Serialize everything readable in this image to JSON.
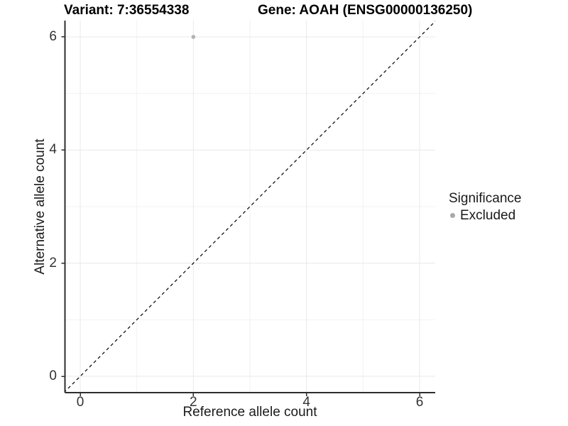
{
  "figure": {
    "title_left": "Variant: 7:36554338",
    "title_right": "Gene: AOAH (ENSG00000136250)"
  },
  "chart_data": {
    "type": "scatter",
    "title": "Variant: 7:36554338    Gene: AOAH (ENSG00000136250)",
    "xlabel": "Reference allele count",
    "ylabel": "Alternative allele count",
    "xlim": [
      -0.27,
      6.29
    ],
    "ylim": [
      -0.29,
      6.29
    ],
    "x_ticks": [
      0,
      2,
      4,
      6
    ],
    "y_ticks": [
      0,
      2,
      4,
      6
    ],
    "x_minor_gridlines": [
      1,
      3,
      5
    ],
    "y_minor_gridlines": [
      1,
      3,
      5
    ],
    "grid": "on",
    "identity_line": {
      "style": "dashed",
      "equation": "y = x",
      "from": -0.29,
      "to": 6.29
    },
    "series": [
      {
        "name": "Excluded",
        "color": "#b3b3b3",
        "points": [
          {
            "x": 2,
            "y": 6
          }
        ]
      }
    ],
    "legend": {
      "position": "right",
      "title": "Significance",
      "entries": [
        {
          "label": "Excluded",
          "color": "#a8a8a8"
        }
      ]
    }
  },
  "colors": {
    "background": "#ffffff",
    "axis_line": "#2e2e2e",
    "grid_major": "#e8e8e8",
    "grid_minor": "#f2f2f2",
    "identity_line": "#000000"
  }
}
